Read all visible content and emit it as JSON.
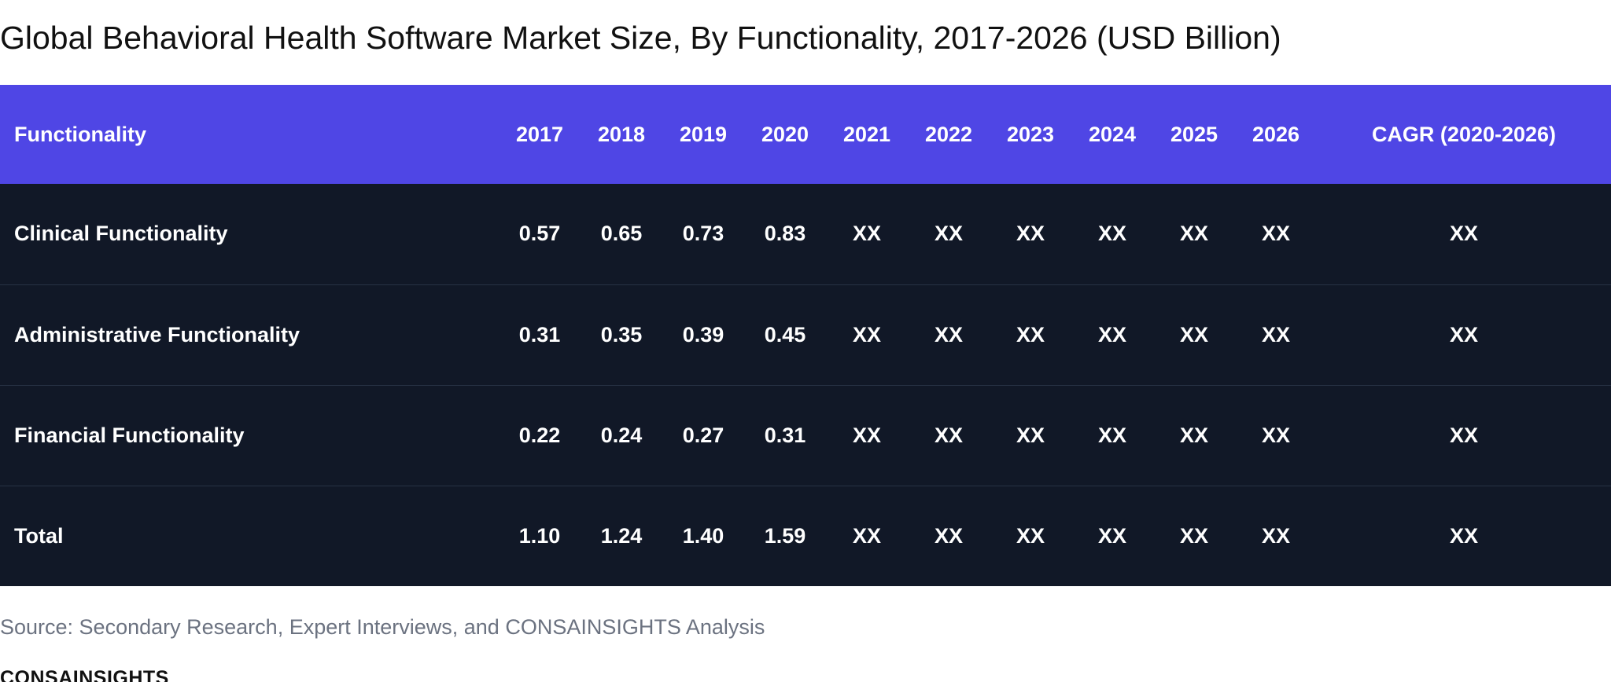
{
  "page_title": "Global Behavioral Health Software Market Size, By Functionality, 2017-2026 (USD Billion)",
  "source": "Source: Secondary Research, Expert Interviews, and CONSAINSIGHTS Analysis",
  "brand": "CONSAINSIGHTS",
  "colors": {
    "header_bg": "#4f46e5",
    "body_bg": "#111827",
    "text": "#ffffff",
    "source_text": "#6b7280"
  },
  "chart_data": {
    "type": "table",
    "title": "Global Behavioral Health Software Market Size, By Functionality, 2017-2026 (USD Billion)",
    "columns": [
      "Functionality",
      "2017",
      "2018",
      "2019",
      "2020",
      "2021",
      "2022",
      "2023",
      "2024",
      "2025",
      "2026",
      "CAGR (2020-2026)"
    ],
    "rows": [
      [
        "Clinical Functionality",
        "0.57",
        "0.65",
        "0.73",
        "0.83",
        "XX",
        "XX",
        "XX",
        "XX",
        "XX",
        "XX",
        "XX"
      ],
      [
        "Administrative Functionality",
        "0.31",
        "0.35",
        "0.39",
        "0.45",
        "XX",
        "XX",
        "XX",
        "XX",
        "XX",
        "XX",
        "XX"
      ],
      [
        "Financial Functionality",
        "0.22",
        "0.24",
        "0.27",
        "0.31",
        "XX",
        "XX",
        "XX",
        "XX",
        "XX",
        "XX",
        "XX"
      ],
      [
        "Total",
        "1.10",
        "1.24",
        "1.40",
        "1.59",
        "XX",
        "XX",
        "XX",
        "XX",
        "XX",
        "XX",
        "XX"
      ]
    ]
  }
}
